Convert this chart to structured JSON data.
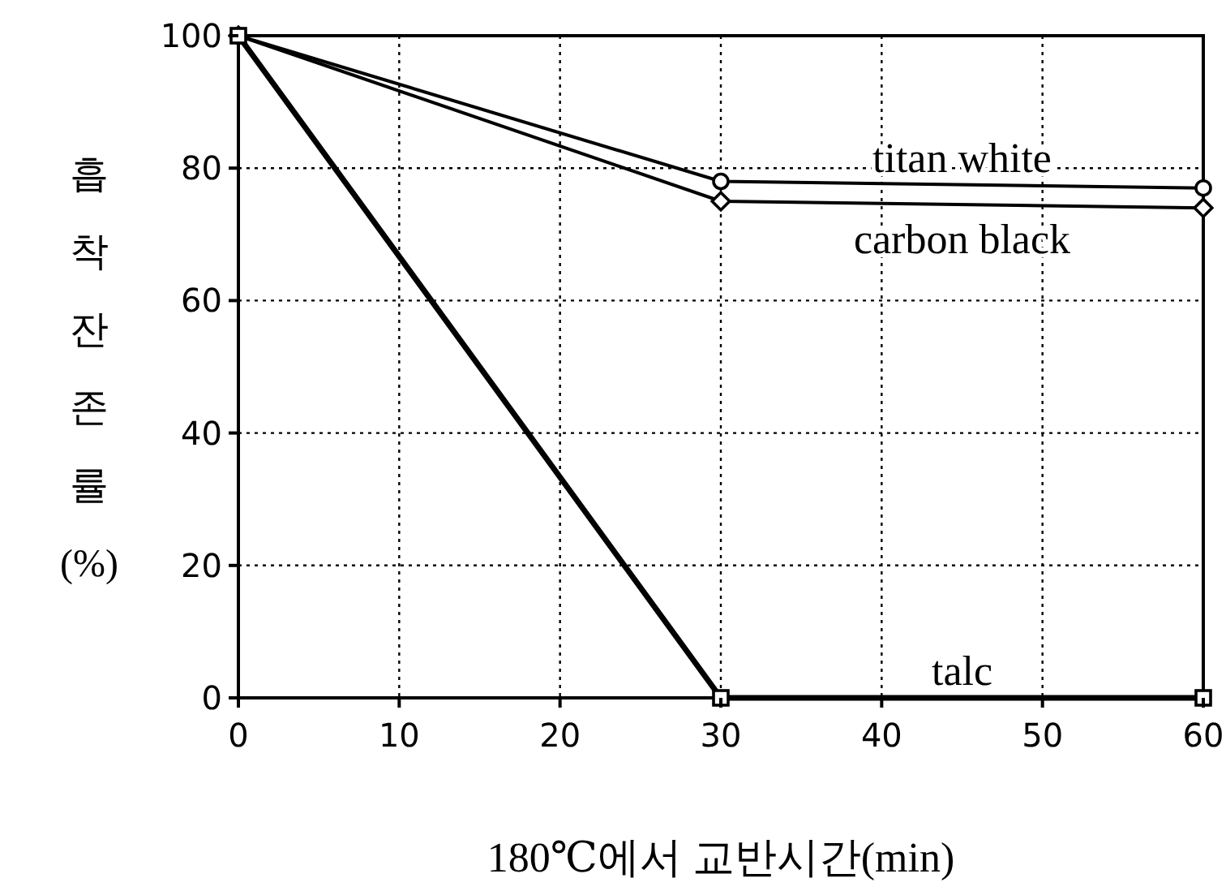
{
  "chart_data": {
    "type": "line",
    "xlabel": "180℃에서 교반시간(min)",
    "ylabel": "흡착잔존률(%)",
    "x": [
      0,
      30,
      60
    ],
    "series": [
      {
        "name": "titan white",
        "color": "#000000",
        "values": [
          100,
          78,
          77
        ],
        "marker": "circle"
      },
      {
        "name": "carbon black",
        "color": "#000000",
        "values": [
          100,
          75,
          74
        ],
        "marker": "diamond"
      },
      {
        "name": "talc",
        "color": "#000000",
        "values": [
          100,
          0,
          0
        ],
        "marker": "square"
      }
    ],
    "xlim": [
      0,
      60
    ],
    "xticks": [
      0,
      10,
      20,
      30,
      40,
      50,
      60
    ],
    "ylim": [
      0,
      100
    ],
    "yticks": [
      0,
      20,
      40,
      60,
      80,
      100
    ],
    "grid": true,
    "legend": false,
    "line_style": "solid"
  }
}
